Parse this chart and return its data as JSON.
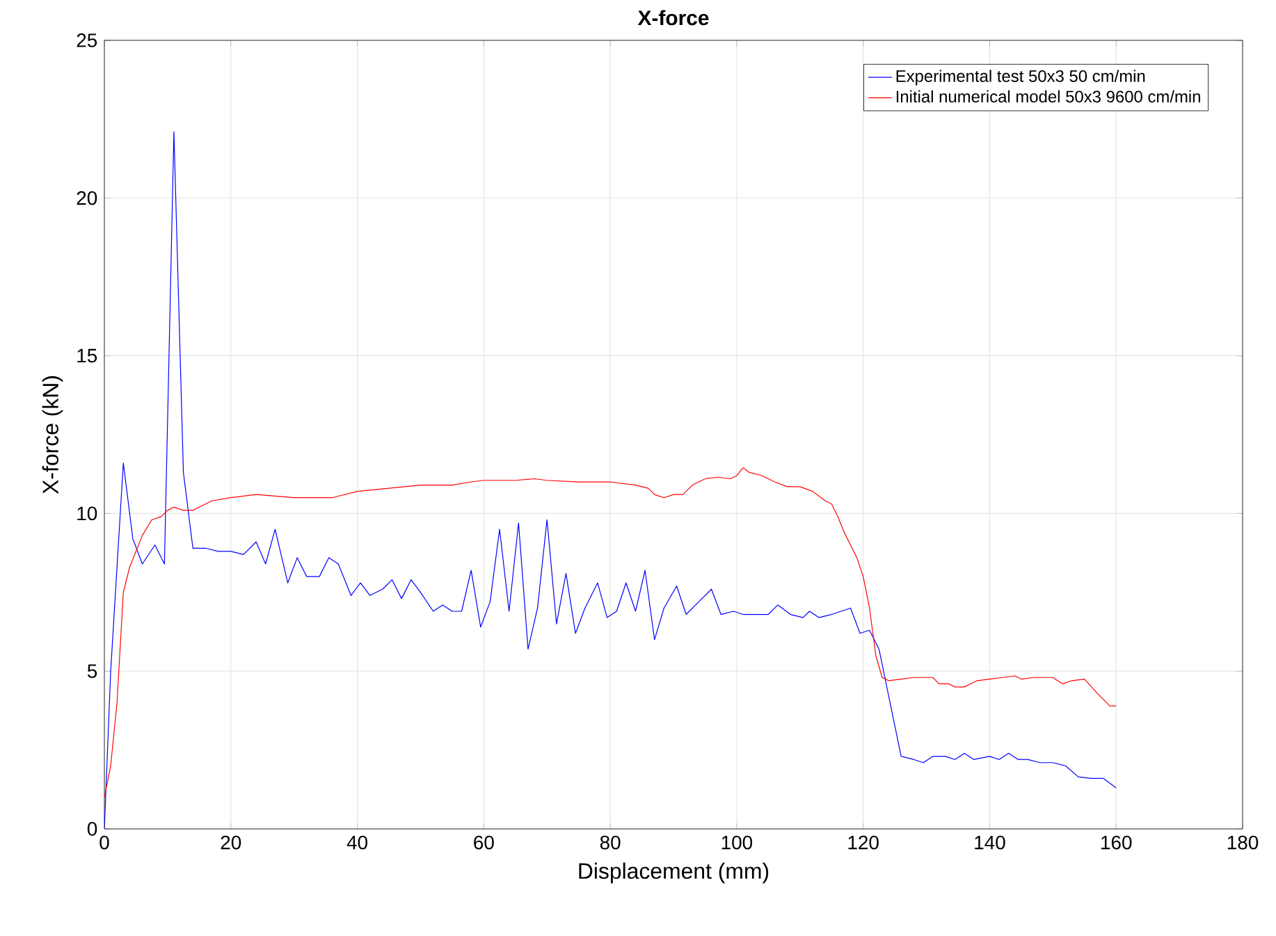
{
  "chart_data": {
    "type": "line",
    "title": "X-force",
    "xlabel": "Displacement (mm)",
    "ylabel": "X-force (kN)",
    "xlim": [
      0,
      180
    ],
    "ylim": [
      0,
      25
    ],
    "xticks": [
      0,
      20,
      40,
      60,
      80,
      100,
      120,
      140,
      160,
      180
    ],
    "yticks": [
      0,
      5,
      10,
      15,
      20,
      25
    ],
    "grid": true,
    "legend": "top right",
    "marker": "none",
    "line_style": "solid",
    "series": [
      {
        "name": "Experimental test 50x3 50 cm/min",
        "color": "#0000ff",
        "x": [
          0,
          1,
          3,
          4.5,
          6,
          8,
          9.5,
          11,
          12.5,
          14,
          16,
          18,
          20,
          22,
          24,
          25.5,
          27,
          29,
          30.5,
          32,
          34,
          35.5,
          37,
          39,
          40.5,
          42,
          44,
          45.5,
          47,
          48.5,
          50,
          52,
          53.5,
          55,
          56.5,
          58,
          59.5,
          61,
          62.5,
          64,
          65.5,
          67,
          68.5,
          70,
          71.5,
          73,
          74.5,
          76,
          78,
          79.5,
          81,
          82.5,
          84,
          85.5,
          87,
          88.5,
          90.5,
          92,
          94,
          96,
          97.5,
          99.5,
          101,
          103,
          105,
          106.5,
          108.5,
          110.5,
          111.5,
          113,
          115,
          118,
          119.5,
          121,
          122.5,
          126,
          128,
          129.5,
          131,
          133,
          134.5,
          136,
          137.5,
          140,
          141.5,
          143,
          144.5,
          146,
          148,
          150,
          152,
          154,
          156,
          158,
          160
        ],
        "values": [
          0,
          5,
          11.6,
          9.2,
          8.4,
          9.0,
          8.4,
          22.1,
          11.3,
          8.9,
          8.9,
          8.8,
          8.8,
          8.7,
          9.1,
          8.4,
          9.5,
          7.8,
          8.6,
          8.0,
          8.0,
          8.6,
          8.4,
          7.4,
          7.8,
          7.4,
          7.6,
          7.9,
          7.3,
          7.9,
          7.5,
          6.9,
          7.1,
          6.9,
          6.9,
          8.2,
          6.4,
          7.2,
          9.5,
          6.9,
          9.7,
          5.7,
          7.0,
          9.8,
          6.5,
          8.1,
          6.2,
          7.0,
          7.8,
          6.7,
          6.9,
          7.8,
          6.9,
          8.2,
          6.0,
          7.0,
          7.7,
          6.8,
          7.2,
          7.6,
          6.8,
          6.9,
          6.8,
          6.8,
          6.8,
          7.1,
          6.8,
          6.7,
          6.9,
          6.7,
          6.8,
          7.0,
          6.2,
          6.3,
          5.7,
          2.3,
          2.2,
          2.1,
          2.3,
          2.3,
          2.2,
          2.4,
          2.2,
          2.3,
          2.2,
          2.4,
          2.2,
          2.2,
          2.1,
          2.1,
          2.0,
          1.65,
          1.6,
          1.6,
          1.3
        ]
      },
      {
        "name": "Initial numerical model 50x3 9600 cm/min",
        "color": "#ff0000",
        "x": [
          0,
          1,
          2,
          3,
          4,
          5,
          6,
          7.5,
          9,
          10,
          11,
          12.5,
          14,
          15,
          17,
          20,
          24,
          30,
          36,
          40,
          45,
          50,
          55,
          58,
          60,
          65,
          68,
          70,
          75,
          80,
          84,
          86,
          87,
          88.5,
          90,
          91.5,
          93,
          95,
          97,
          99,
          100,
          101,
          102,
          104,
          106,
          108,
          110,
          112,
          114,
          115,
          116,
          117,
          118,
          119,
          120,
          121,
          122,
          123,
          124,
          126,
          128,
          131,
          132,
          133.5,
          134.5,
          136,
          137,
          138,
          140,
          142,
          144,
          145,
          147,
          150,
          151.5,
          153,
          155,
          157,
          159,
          160
        ],
        "values": [
          1.0,
          2,
          4,
          7.5,
          8.3,
          8.8,
          9.3,
          9.8,
          9.9,
          10.1,
          10.2,
          10.1,
          10.1,
          10.2,
          10.4,
          10.5,
          10.6,
          10.5,
          10.5,
          10.7,
          10.8,
          10.9,
          10.9,
          11.0,
          11.05,
          11.05,
          11.1,
          11.05,
          11.0,
          11.0,
          10.9,
          10.8,
          10.6,
          10.5,
          10.6,
          10.6,
          10.9,
          11.1,
          11.15,
          11.1,
          11.2,
          11.45,
          11.3,
          11.2,
          11.0,
          10.85,
          10.85,
          10.7,
          10.4,
          10.3,
          9.9,
          9.4,
          9.0,
          8.6,
          8.0,
          7.0,
          5.5,
          4.8,
          4.7,
          4.75,
          4.8,
          4.8,
          4.6,
          4.6,
          4.5,
          4.5,
          4.6,
          4.7,
          4.75,
          4.8,
          4.85,
          4.75,
          4.8,
          4.8,
          4.6,
          4.7,
          4.75,
          4.3,
          3.9,
          3.9
        ]
      }
    ]
  }
}
